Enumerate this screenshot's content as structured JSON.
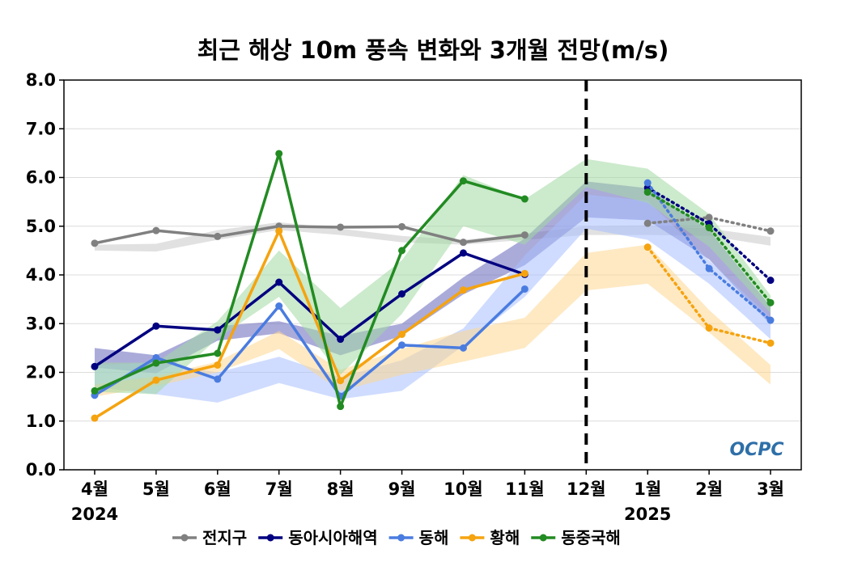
{
  "chart_data": {
    "type": "line",
    "title": "최근 해상 10m 풍속 변화와 3개월 전망(m/s)",
    "categories": [
      "4월",
      "5월",
      "6월",
      "7월",
      "8월",
      "9월",
      "10월",
      "11월",
      "12월",
      "1월",
      "2월",
      "3월"
    ],
    "year_labels": [
      {
        "category": "4월",
        "label": "2024"
      },
      {
        "category": "1월",
        "label": "2025"
      }
    ],
    "ylim": [
      0,
      8
    ],
    "yticks": [
      "0.0",
      "1.0",
      "2.0",
      "3.0",
      "4.0",
      "5.0",
      "6.0",
      "7.0",
      "8.0"
    ],
    "grid": true,
    "forecast_divider_after": "11월",
    "legend_position": "bottom",
    "series": [
      {
        "name": "전지구",
        "color": "#808080",
        "band_color": "#c8c8c8",
        "observed": [
          4.65,
          4.91,
          4.79,
          5.0,
          4.98,
          4.99,
          4.67,
          4.82
        ],
        "forecast": {
          "categories": [
            "1월",
            "2월",
            "3월"
          ],
          "values": [
            5.06,
            5.18,
            4.9
          ]
        },
        "band_low": [
          4.5,
          4.48,
          4.72,
          4.92,
          4.82,
          4.67,
          4.62,
          4.72,
          4.82,
          4.82,
          4.8,
          4.6
        ],
        "band_high": [
          4.62,
          4.64,
          4.92,
          5.08,
          4.95,
          4.8,
          4.72,
          4.85,
          5.0,
          5.02,
          4.95,
          4.78
        ]
      },
      {
        "name": "동아시아해역",
        "color": "#000080",
        "band_color": "#6666bb",
        "observed": [
          2.12,
          2.95,
          2.87,
          3.85,
          2.68,
          3.61,
          4.45,
          4.01
        ],
        "forecast": {
          "categories": [
            "1월",
            "2월",
            "3월"
          ],
          "values": [
            5.79,
            5.05,
            3.89
          ]
        },
        "band_low": [
          2.1,
          1.98,
          2.65,
          2.8,
          2.35,
          2.75,
          3.6,
          4.2,
          5.18,
          5.12,
          4.32,
          2.98
        ],
        "band_high": [
          2.5,
          2.35,
          2.95,
          3.05,
          2.75,
          3.0,
          3.95,
          4.75,
          5.92,
          5.78,
          4.92,
          3.35
        ]
      },
      {
        "name": "동해",
        "color": "#4a7ce0",
        "band_color": "#a8c0ff",
        "observed": [
          1.53,
          2.3,
          1.86,
          3.36,
          1.51,
          2.56,
          2.5,
          3.71
        ],
        "forecast": {
          "categories": [
            "1월",
            "2월",
            "3월"
          ],
          "values": [
            5.89,
            4.13,
            3.07
          ]
        },
        "band_low": [
          1.7,
          1.55,
          1.38,
          1.78,
          1.45,
          1.62,
          2.55,
          3.55,
          4.95,
          4.72,
          3.82,
          2.68
        ],
        "band_high": [
          2.15,
          2.2,
          2.0,
          2.32,
          1.9,
          2.25,
          2.9,
          4.4,
          5.65,
          5.52,
          4.3,
          3.12
        ]
      },
      {
        "name": "황해",
        "color": "#f5a30f",
        "band_color": "#fdd792",
        "observed": [
          1.06,
          1.84,
          2.15,
          4.9,
          1.83,
          2.78,
          3.69,
          4.03
        ],
        "forecast": {
          "categories": [
            "1월",
            "2월",
            "3월"
          ],
          "values": [
            4.57,
            2.91,
            2.6
          ]
        },
        "band_low": [
          1.5,
          1.72,
          2.0,
          2.48,
          1.62,
          1.95,
          2.22,
          2.5,
          3.68,
          3.82,
          2.82,
          1.75
        ],
        "band_high": [
          1.75,
          1.92,
          2.22,
          2.85,
          2.05,
          2.48,
          2.85,
          3.12,
          4.45,
          4.62,
          3.28,
          2.15
        ]
      },
      {
        "name": "동중국해",
        "color": "#228b22",
        "band_color": "#a3d9a3",
        "observed": [
          1.62,
          2.19,
          2.39,
          6.49,
          1.3,
          4.5,
          5.93,
          5.56
        ],
        "forecast": {
          "categories": [
            "1월",
            "2월",
            "3월"
          ],
          "values": [
            5.7,
            4.97,
            3.43
          ]
        },
        "band_low": [
          1.6,
          1.55,
          2.7,
          3.55,
          1.95,
          3.2,
          5.0,
          4.62,
          5.8,
          5.48,
          4.58,
          3.22
        ],
        "band_high": [
          2.2,
          2.2,
          3.05,
          4.5,
          3.32,
          4.3,
          6.05,
          5.55,
          6.38,
          6.18,
          5.25,
          3.58
        ]
      }
    ]
  },
  "watermark": "OCPC"
}
